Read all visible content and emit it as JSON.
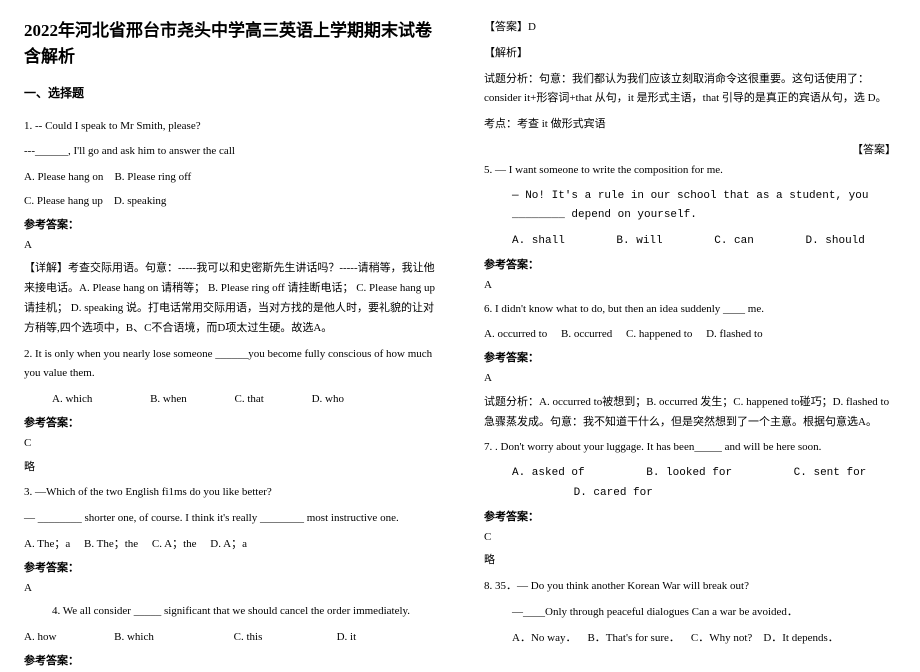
{
  "doc": {
    "title": "2022年河北省邢台市尧头中学高三英语上学期期末试卷含解析",
    "section": "一、选择题"
  },
  "q1": {
    "line1": "1. -- Could I speak to Mr Smith, please?",
    "line2": "---______, I'll go and ask him to answer the call",
    "optA": "A. Please hang on",
    "optB": "B. Please ring off",
    "optC": "C. Please hang up",
    "optD": "D. speaking",
    "ansLabel": "参考答案：",
    "ansVal": "A",
    "explLabel": "【详解】",
    "expl1": "考查交际用语。句意：-----我可以和史密斯先生讲话吗？-----请稍等，我让他来接电话。A. Please hang on  请稍等；",
    "expl2": "B. Please ring off 请挂断电话；    C. Please hang up  请挂机；    D. speaking 说。打电话常用交际用语，当对方找的是他人时，要礼貌的让对方稍等,四个选项中，B、C不合语境，而D项太过生硬。故选A。"
  },
  "q2": {
    "text": "2. It is only when you nearly lose someone ______you become fully conscious of how much you value them.",
    "optA": "A. which",
    "optB": "B. when",
    "optC": "C. that",
    "optD": "D. who",
    "ansLabel": "参考答案：",
    "ansVal": "C",
    "note": "略"
  },
  "q3": {
    "line1": "3. —Which of the two English fi1ms do you like better?",
    "line2": "— ________ shorter one, of course. I think it's really ________ most instructive one.",
    "optA": "A. The；a",
    "optB": "B. The；the",
    "optC": "C. A；the",
    "optD": "D. A；a",
    "ansLabel": "参考答案：",
    "ansVal": "A"
  },
  "q4": {
    "text": "4. We all consider _____ significant that we should cancel the order immediately.",
    "optA": "A. how",
    "optB": "B. which",
    "optC": "C. this",
    "optD": "D. it",
    "ansLabel": "参考答案："
  },
  "q4r": {
    "ansTag": "【答案】D",
    "explTag": "【解析】",
    "expl1": "试题分析：句意：我们都认为我们应该立刻取消命令这很重要。这句话使用了：consider it+形容词+that 从句，it 是形式主语，that 引导的是真正的宾语从句，选 D。",
    "expl2": "考点：考查 it 做形式宾语",
    "rightNote": "【答案】"
  },
  "q5": {
    "line1": "5. — I want someone to write the composition for me.",
    "line2": "— No! It's a rule in our school that as a student, you ________ depend on yourself.",
    "optA": "A. shall",
    "optB": "B. will",
    "optC": "C. can",
    "optD": "D. should",
    "ansLabel": "参考答案：",
    "ansVal": "A"
  },
  "q6": {
    "text": "6. I didn't know what to do, but then an idea suddenly ____ me.",
    "optA": "A. occurred to",
    "optB": "B. occurred",
    "optC": "C. happened to",
    "optD": "D. flashed to",
    "ansLabel": "参考答案：",
    "ansVal": "A",
    "expl": "试题分析：A. occurred to被想到；B. occurred 发生；C. happened to碰巧；D. flashed to急骤蒸发成。句意：我不知道干什么，但是突然想到了一个主意。根据句意选A。"
  },
  "q7": {
    "text": "7. . Don't worry about your luggage. It has been_____ and will be here soon.",
    "optA": "A. asked of",
    "optB": "B. looked for",
    "optC": "C. sent for",
    "optD": "D. cared for",
    "ansLabel": "参考答案：",
    "ansVal": "C",
    "note": "略"
  },
  "q8": {
    "line1": "8. 35．— Do you think another Korean War will break out?",
    "line2": "—____Only through peaceful dialogues Can a war be avoided．",
    "optA": "A．No way．",
    "optB": "B．That's for sure．",
    "optC": "C．Why not?",
    "optD": "D．It depends．"
  }
}
